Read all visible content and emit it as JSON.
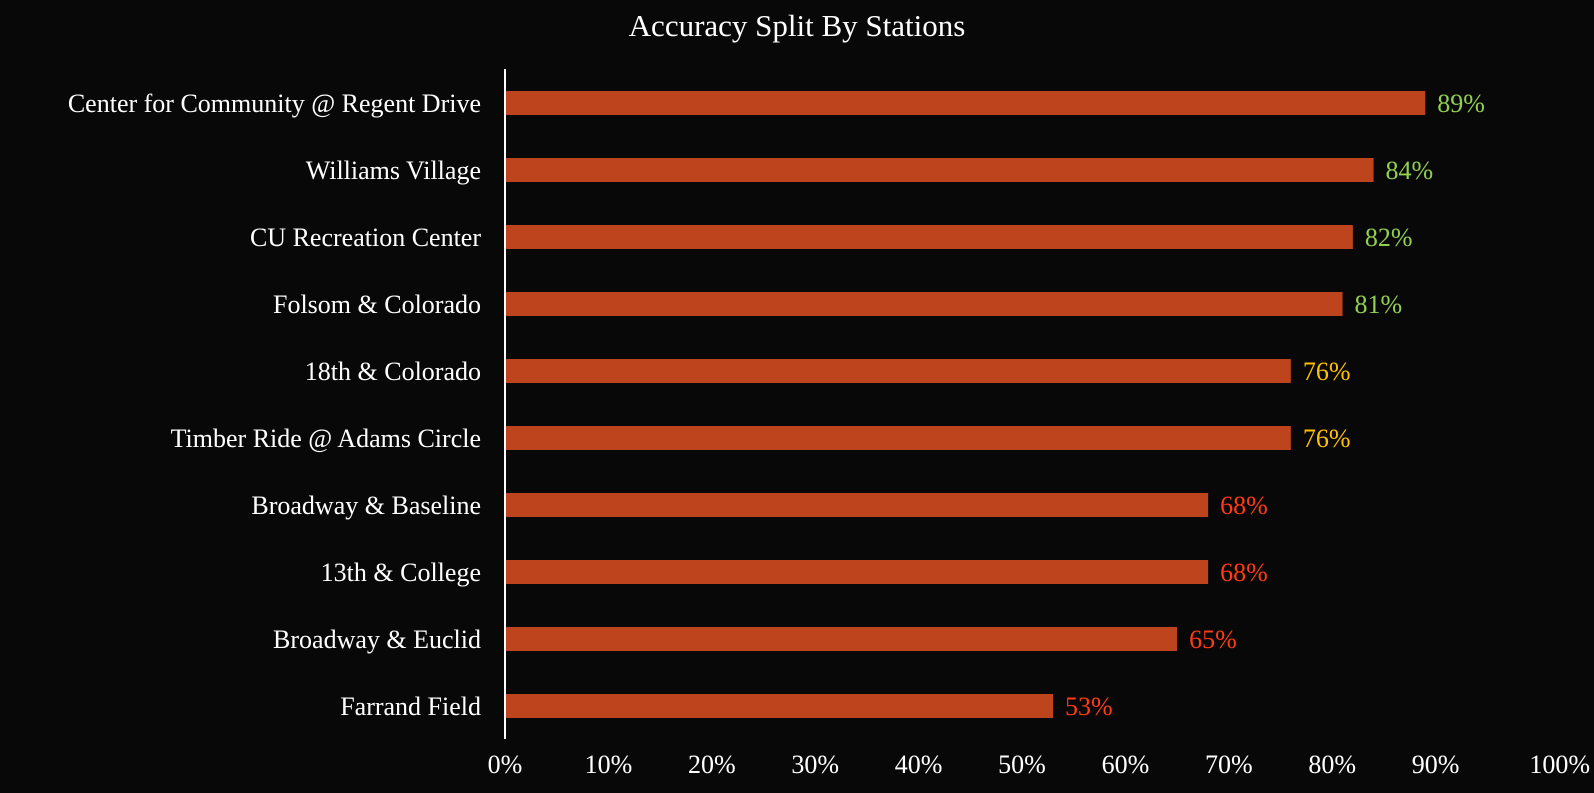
{
  "chart_data": {
    "type": "bar",
    "orientation": "horizontal",
    "title": "Accuracy Split By Stations",
    "xlabel": "",
    "ylabel": "",
    "categories": [
      "Center for Community @ Regent Drive",
      "Williams Village",
      "CU Recreation Center",
      "Folsom & Colorado",
      "18th & Colorado",
      "Timber Ride @ Adams Circle",
      "Broadway & Baseline",
      "13th & College",
      "Broadway & Euclid",
      "Farrand Field"
    ],
    "values": [
      0.89,
      0.84,
      0.82,
      0.81,
      0.76,
      0.76,
      0.68,
      0.68,
      0.65,
      0.53
    ],
    "value_labels": [
      "89%",
      "84%",
      "82%",
      "81%",
      "76%",
      "76%",
      "68%",
      "68%",
      "65%",
      "53%"
    ],
    "value_label_colors": [
      "#92d050",
      "#92d050",
      "#92d050",
      "#92d050",
      "#ffc000",
      "#ffc000",
      "#ff3a14",
      "#ff3a14",
      "#ff3a14",
      "#ff3a14"
    ],
    "xlim": [
      0,
      1
    ],
    "x_ticks": [
      0,
      0.1,
      0.2,
      0.3,
      0.4,
      0.5,
      0.6,
      0.7,
      0.8,
      0.9,
      1.0
    ],
    "x_tick_labels": [
      "0%",
      "10%",
      "20%",
      "30%",
      "40%",
      "50%",
      "60%",
      "70%",
      "80%",
      "90%",
      "100%"
    ],
    "grid": false,
    "legend": "none",
    "colors": {
      "background": "#080808",
      "bar": "#be441e",
      "axis": "#ffffff",
      "text": "#ffffff"
    }
  }
}
